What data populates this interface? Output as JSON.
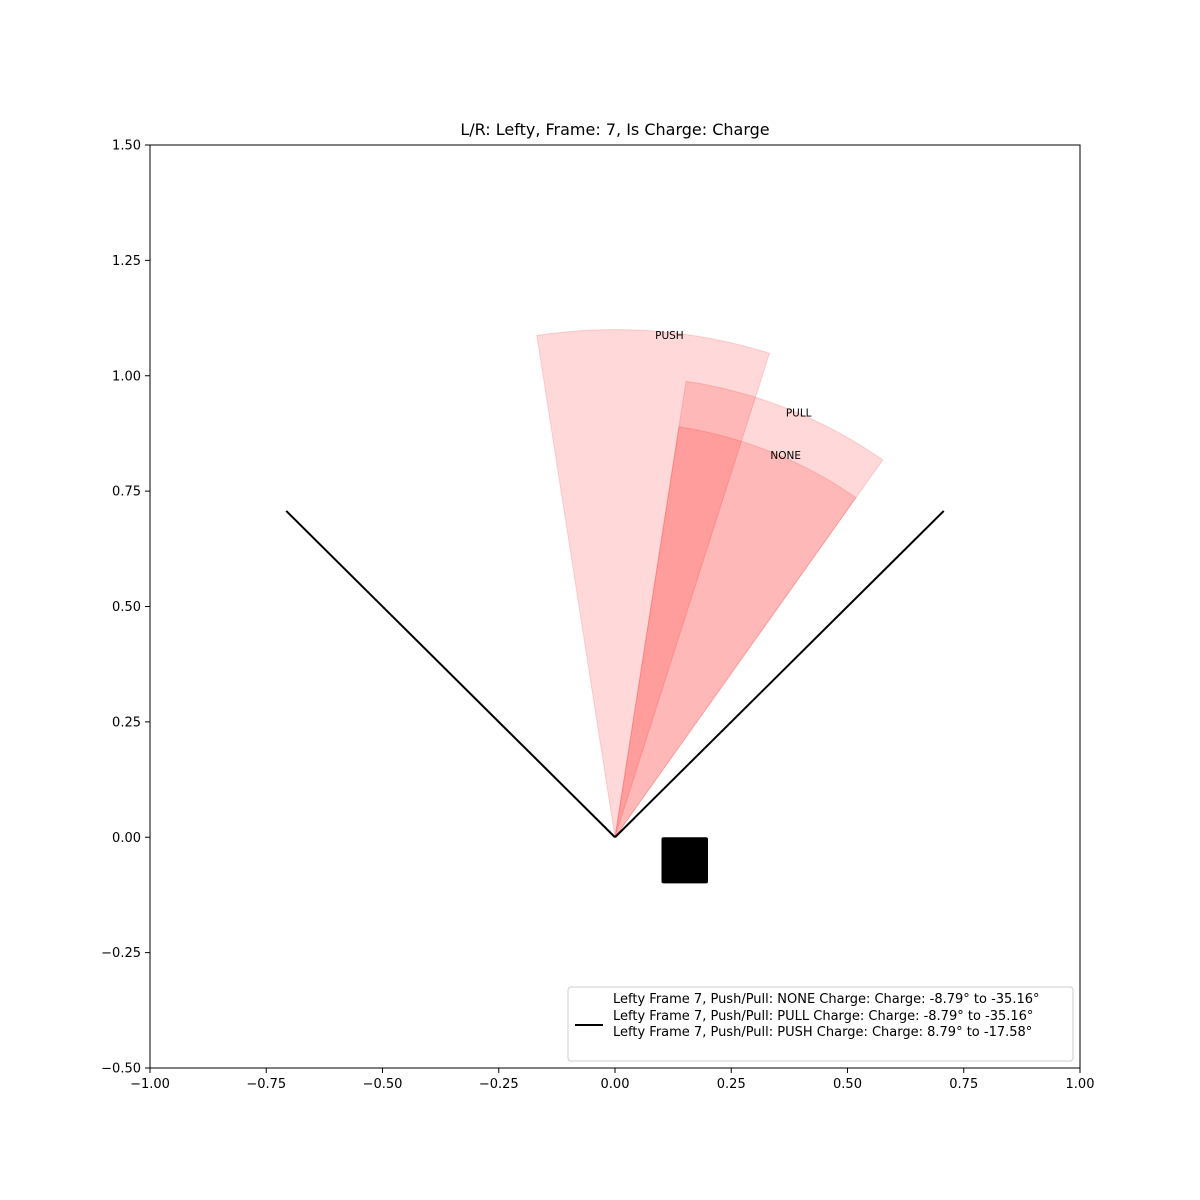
{
  "chart_data": {
    "type": "area",
    "title": "L/R: Lefty, Frame: 7, Is Charge: Charge",
    "xlabel": "",
    "ylabel": "",
    "xlim": [
      -1.0,
      1.0
    ],
    "ylim": [
      -0.5,
      1.5
    ],
    "xticks": [
      "−1.00",
      "−0.75",
      "−0.50",
      "−0.25",
      "0.00",
      "0.25",
      "0.50",
      "0.75",
      "1.00"
    ],
    "yticks": [
      "−0.50",
      "−0.25",
      "0.00",
      "0.25",
      "0.50",
      "0.75",
      "1.00",
      "1.25",
      "1.50"
    ],
    "xtick_values": [
      -1.0,
      -0.75,
      -0.5,
      -0.25,
      0.0,
      0.25,
      0.5,
      0.75,
      1.0
    ],
    "ytick_values": [
      -0.5,
      -0.25,
      0.0,
      0.25,
      0.5,
      0.75,
      1.0,
      1.25,
      1.5
    ],
    "grid": false,
    "field_lines": [
      {
        "x": [
          0,
          -0.707
        ],
        "y": [
          0,
          0.707
        ]
      },
      {
        "x": [
          0,
          0.707
        ],
        "y": [
          0,
          0.707
        ]
      }
    ],
    "home_plate": {
      "x": [
        0.1,
        0.2
      ],
      "y": [
        -0.1,
        0.0
      ]
    },
    "wedges": [
      {
        "label": "NONE",
        "radius": 0.9,
        "angle_from_deg": -8.79,
        "angle_to_deg": -35.16,
        "label_x": 0.367,
        "label_y": 0.82
      },
      {
        "label": "PULL",
        "radius": 1.0,
        "angle_from_deg": -8.79,
        "angle_to_deg": -35.16,
        "label_x": 0.395,
        "label_y": 0.912
      },
      {
        "label": "PUSH",
        "radius": 1.1,
        "angle_from_deg": 8.79,
        "angle_to_deg": -17.58,
        "label_x": 0.117,
        "label_y": 1.08
      }
    ],
    "wedge_color": "#ff0000",
    "wedge_alpha": 0.15,
    "line_color": "#000000",
    "legend": {
      "placement": "lower right",
      "entries": [
        "Lefty Frame 7, Push/Pull: NONE Charge: Charge: -8.79° to -35.16°",
        "Lefty Frame 7, Push/Pull: PULL Charge: Charge: -8.79° to -35.16°",
        "Lefty Frame 7, Push/Pull: PUSH Charge: Charge: 8.79° to -17.58°"
      ]
    }
  }
}
